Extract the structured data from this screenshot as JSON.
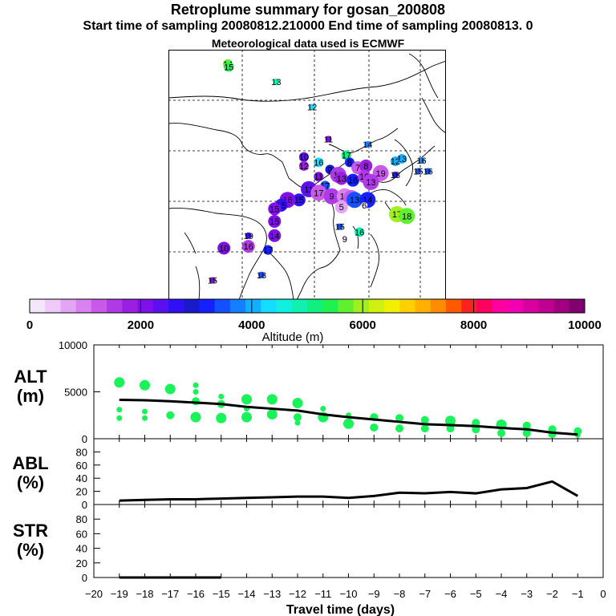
{
  "header": {
    "title": "Retroplume summary for gosan_200808",
    "sampling": "Start time of sampling 20080812.210000      End time of sampling 20080813.      0",
    "met": "Meteorological data used is ECMWF"
  },
  "colorbar": {
    "colors": [
      "#f6e6fb",
      "#efcaf8",
      "#e4a6f4",
      "#d981f0",
      "#c95ae9",
      "#b03be6",
      "#9a1fe0",
      "#7f10e8",
      "#5a10ef",
      "#3010f5",
      "#1a1ac8",
      "#1420ff",
      "#1450ff",
      "#1480ff",
      "#14b0ff",
      "#14ddff",
      "#10f0e0",
      "#10f0b0",
      "#10f080",
      "#20f050",
      "#60f030",
      "#a0f020",
      "#d0f010",
      "#f0f000",
      "#ffd000",
      "#ffb000",
      "#ff8c00",
      "#ff5a00",
      "#ff2020",
      "#ff0060",
      "#ff00a0",
      "#f000b0",
      "#d8009e",
      "#c00090",
      "#a00080",
      "#800070"
    ],
    "tick_labels": [
      "0",
      "2000",
      "4000",
      "6000",
      "8000",
      "10000"
    ],
    "label": "Altitude (m)"
  },
  "map": {
    "points": [
      {
        "day": "14",
        "lon": 93.2,
        "lat": 84.0,
        "alt": 5800,
        "size": 2
      },
      {
        "day": "15",
        "lon": 93.5,
        "lat": 83.2,
        "alt": 5300,
        "size": 2
      },
      {
        "day": "13",
        "lon": 108.0,
        "lat": 79.0,
        "alt": 4800,
        "size": 1
      },
      {
        "day": "12",
        "lon": 119.0,
        "lat": 72.0,
        "alt": 4300,
        "size": 1
      },
      {
        "day": "11",
        "lon": 124.0,
        "lat": 63.0,
        "alt": 2200,
        "size": 1
      },
      {
        "day": "14",
        "lon": 136.0,
        "lat": 61.5,
        "alt": 3800,
        "size": 1
      },
      {
        "day": "10",
        "lon": 116.5,
        "lat": 58.0,
        "alt": 2400,
        "size": 2
      },
      {
        "day": "12",
        "lon": 116.5,
        "lat": 55.5,
        "alt": 1900,
        "size": 2
      },
      {
        "day": "16",
        "lon": 121.0,
        "lat": 56.5,
        "alt": 4400,
        "size": 2
      },
      {
        "day": "17",
        "lon": 129.5,
        "lat": 58.5,
        "alt": 5200,
        "size": 2
      },
      {
        "day": "8",
        "lon": 130.5,
        "lat": 56.5,
        "alt": 3200,
        "size": 2
      },
      {
        "day": "9",
        "lon": 124.5,
        "lat": 54.5,
        "alt": 3000,
        "size": 2
      },
      {
        "day": "7",
        "lon": 133.0,
        "lat": 55.0,
        "alt": 1200,
        "size": 3
      },
      {
        "day": "8",
        "lon": 135.5,
        "lat": 55.5,
        "alt": 1700,
        "size": 3
      },
      {
        "day": "13",
        "lon": 146.5,
        "lat": 57.5,
        "alt": 4100,
        "size": 2
      },
      {
        "day": "12",
        "lon": 144.5,
        "lat": 56.8,
        "alt": 3900,
        "size": 2
      },
      {
        "day": "16",
        "lon": 152.5,
        "lat": 57.0,
        "alt": 3800,
        "size": 1
      },
      {
        "day": "15",
        "lon": 151.5,
        "lat": 54.0,
        "alt": 3600,
        "size": 1
      },
      {
        "day": "16",
        "lon": 154.5,
        "lat": 54.0,
        "alt": 3500,
        "size": 1
      },
      {
        "day": "19",
        "lon": 140.0,
        "lat": 53.5,
        "alt": 1300,
        "size": 4
      },
      {
        "day": "18",
        "lon": 144.5,
        "lat": 53.0,
        "alt": 2600,
        "size": 1
      },
      {
        "day": "11",
        "lon": 121.0,
        "lat": 52.5,
        "alt": 2100,
        "size": 2
      },
      {
        "day": "12",
        "lon": 127.0,
        "lat": 53.0,
        "alt": 1600,
        "size": 4
      },
      {
        "day": "13",
        "lon": 128.0,
        "lat": 52.0,
        "alt": 1800,
        "size": 3
      },
      {
        "day": "16",
        "lon": 131.5,
        "lat": 51.5,
        "alt": 3300,
        "size": 3
      },
      {
        "day": "10",
        "lon": 135.0,
        "lat": 52.5,
        "alt": 1400,
        "size": 3
      },
      {
        "day": "13",
        "lon": 137.0,
        "lat": 51.0,
        "alt": 1500,
        "size": 4
      },
      {
        "day": "17",
        "lon": 123.0,
        "lat": 50.0,
        "alt": 3400,
        "size": 2
      },
      {
        "day": "11",
        "lon": 118.0,
        "lat": 49.0,
        "alt": 2300,
        "size": 4
      },
      {
        "day": "17",
        "lon": 121.0,
        "lat": 48.0,
        "alt": 1300,
        "size": 4
      },
      {
        "day": "9",
        "lon": 125.0,
        "lat": 47.0,
        "alt": 1400,
        "size": 4
      },
      {
        "day": "15",
        "lon": 129.0,
        "lat": 47.0,
        "alt": 900,
        "size": 4
      },
      {
        "day": "14",
        "lon": 131.0,
        "lat": 46.5,
        "alt": 1200,
        "size": 4
      },
      {
        "day": "13",
        "lon": 132.0,
        "lat": 46.0,
        "alt": 3500,
        "size": 4
      },
      {
        "day": "14",
        "lon": 136.0,
        "lat": 46.0,
        "alt": 3300,
        "size": 4
      },
      {
        "day": "15",
        "lon": 115.0,
        "lat": 46.0,
        "alt": 2500,
        "size": 3
      },
      {
        "day": "16",
        "lon": 111.5,
        "lat": 46.0,
        "alt": 2200,
        "size": 4
      },
      {
        "day": "15",
        "lon": 109.5,
        "lat": 44.5,
        "alt": 2700,
        "size": 3
      },
      {
        "day": "15",
        "lon": 107.5,
        "lat": 43.5,
        "alt": 2200,
        "size": 3
      },
      {
        "day": "6",
        "lon": 135.0,
        "lat": 44.5,
        "alt": 100,
        "size": 1
      },
      {
        "day": "5",
        "lon": 128.0,
        "lat": 44.0,
        "alt": 800,
        "size": 3
      },
      {
        "day": "17",
        "lon": 145.0,
        "lat": 42.0,
        "alt": 5900,
        "size": 4
      },
      {
        "day": "18",
        "lon": 148.0,
        "lat": 41.5,
        "alt": 5800,
        "size": 4
      },
      {
        "day": "15",
        "lon": 107.5,
        "lat": 40.0,
        "alt": 2100,
        "size": 3
      },
      {
        "day": "15",
        "lon": 127.5,
        "lat": 38.5,
        "alt": 3500,
        "size": 1
      },
      {
        "day": "16",
        "lon": 133.5,
        "lat": 37.0,
        "alt": 4800,
        "size": 2
      },
      {
        "day": "19",
        "lon": 99.5,
        "lat": 36.0,
        "alt": 2600,
        "size": 1
      },
      {
        "day": "14",
        "lon": 107.5,
        "lat": 36.0,
        "alt": 2000,
        "size": 3
      },
      {
        "day": "9",
        "lon": 129.0,
        "lat": 35.0,
        "alt": 100,
        "size": 1
      },
      {
        "day": "16",
        "lon": 99.5,
        "lat": 33.0,
        "alt": 1400,
        "size": 3
      },
      {
        "day": "10",
        "lon": 92.0,
        "lat": 32.5,
        "alt": 2100,
        "size": 3
      },
      {
        "day": "17",
        "lon": 105.5,
        "lat": 32.0,
        "alt": 3100,
        "size": 2
      },
      {
        "day": "18",
        "lon": 103.5,
        "lat": 25.0,
        "alt": 3400,
        "size": 1
      },
      {
        "day": "15",
        "lon": 88.5,
        "lat": 23.5,
        "alt": 2200,
        "size": 1
      }
    ]
  },
  "panels": {
    "x_ticks": [
      "-20",
      "-19",
      "-18",
      "-17",
      "-16",
      "-15",
      "-14",
      "-13",
      "-12",
      "-11",
      "-10",
      "-9",
      "-8",
      "-7",
      "-6",
      "-5",
      "-4",
      "-3",
      "-2",
      "-1",
      "0"
    ],
    "xlabel": "Travel time (days)",
    "alt": {
      "label_top": "ALT",
      "label_bottom": "(m)",
      "y_ticks": [
        "0",
        "5000",
        "10000"
      ]
    },
    "abl": {
      "label_top": "ABL",
      "label_bottom": "(%)",
      "y_ticks": [
        "0",
        "20",
        "40",
        "60",
        "80"
      ]
    },
    "str": {
      "label_top": "STR",
      "label_bottom": "(%)",
      "y_ticks": [
        "0",
        "20",
        "40",
        "60",
        "80"
      ]
    }
  },
  "chart_data": [
    {
      "type": "scatter",
      "title": "ALT (m)",
      "xlabel": "Travel time (days)",
      "ylabel": "ALT (m)",
      "xlim": [
        -20,
        0
      ],
      "ylim": [
        0,
        10000
      ],
      "series": [
        {
          "name": "median altitude",
          "type": "line",
          "x": [
            -19,
            -18,
            -17,
            -16,
            -15,
            -14,
            -13,
            -12,
            -11,
            -10,
            -9,
            -8,
            -7,
            -6,
            -5,
            -4,
            -3,
            -2,
            -1
          ],
          "values": [
            4150,
            4100,
            4000,
            3850,
            3700,
            3400,
            3200,
            3000,
            2600,
            2300,
            2050,
            1800,
            1550,
            1450,
            1350,
            1150,
            1000,
            650,
            450
          ]
        },
        {
          "name": "cluster altitudes",
          "type": "scatter",
          "x": [
            -19,
            -19,
            -19,
            -18,
            -18,
            -18,
            -17,
            -17,
            -16,
            -16,
            -16,
            -16,
            -15,
            -15,
            -15,
            -14,
            -14,
            -14,
            -13,
            -13,
            -12,
            -12,
            -12,
            -11,
            -11,
            -10,
            -10,
            -9,
            -9,
            -8,
            -8,
            -7,
            -7,
            -6,
            -6,
            -5,
            -5,
            -4,
            -4,
            -3,
            -3,
            -2,
            -2,
            -1,
            -1
          ],
          "values": [
            6000,
            3100,
            2200,
            5700,
            2900,
            2200,
            5300,
            2500,
            5700,
            5000,
            4000,
            2300,
            4500,
            3700,
            2200,
            4200,
            3200,
            2300,
            4200,
            2600,
            3800,
            2300,
            1700,
            3200,
            2300,
            2500,
            1600,
            2300,
            1200,
            2200,
            1100,
            2000,
            1100,
            1900,
            1100,
            1700,
            1000,
            1500,
            600,
            1400,
            600,
            1000,
            500,
            800,
            400
          ],
          "sizes": [
            4,
            2,
            2,
            4,
            2,
            2,
            4,
            3,
            2,
            2,
            3,
            4,
            2,
            3,
            4,
            4,
            2,
            4,
            4,
            4,
            4,
            3,
            2,
            2,
            4,
            2,
            4,
            3,
            3,
            3,
            3,
            3,
            3,
            4,
            3,
            3,
            3,
            4,
            3,
            3,
            3,
            3,
            3,
            3,
            2
          ]
        }
      ]
    },
    {
      "type": "line",
      "title": "ABL (%)",
      "xlabel": "Travel time (days)",
      "ylabel": "ABL (%)",
      "xlim": [
        -20,
        0
      ],
      "ylim": [
        0,
        100
      ],
      "x": [
        -19,
        -18,
        -17,
        -16,
        -15,
        -14,
        -13,
        -12,
        -11,
        -10,
        -9,
        -8,
        -7,
        -6,
        -5,
        -4,
        -3,
        -2,
        -1
      ],
      "values": [
        6,
        7,
        8,
        8,
        9,
        10,
        11,
        12,
        12,
        10,
        13,
        18,
        17,
        19,
        17,
        23,
        25,
        35,
        13
      ]
    },
    {
      "type": "line",
      "title": "STR (%)",
      "xlabel": "Travel time (days)",
      "ylabel": "STR (%)",
      "xlim": [
        -20,
        0
      ],
      "ylim": [
        0,
        100
      ],
      "x": [
        -19,
        -18,
        -17,
        -16,
        -15
      ],
      "values": [
        0,
        0,
        0,
        0,
        0
      ]
    }
  ]
}
